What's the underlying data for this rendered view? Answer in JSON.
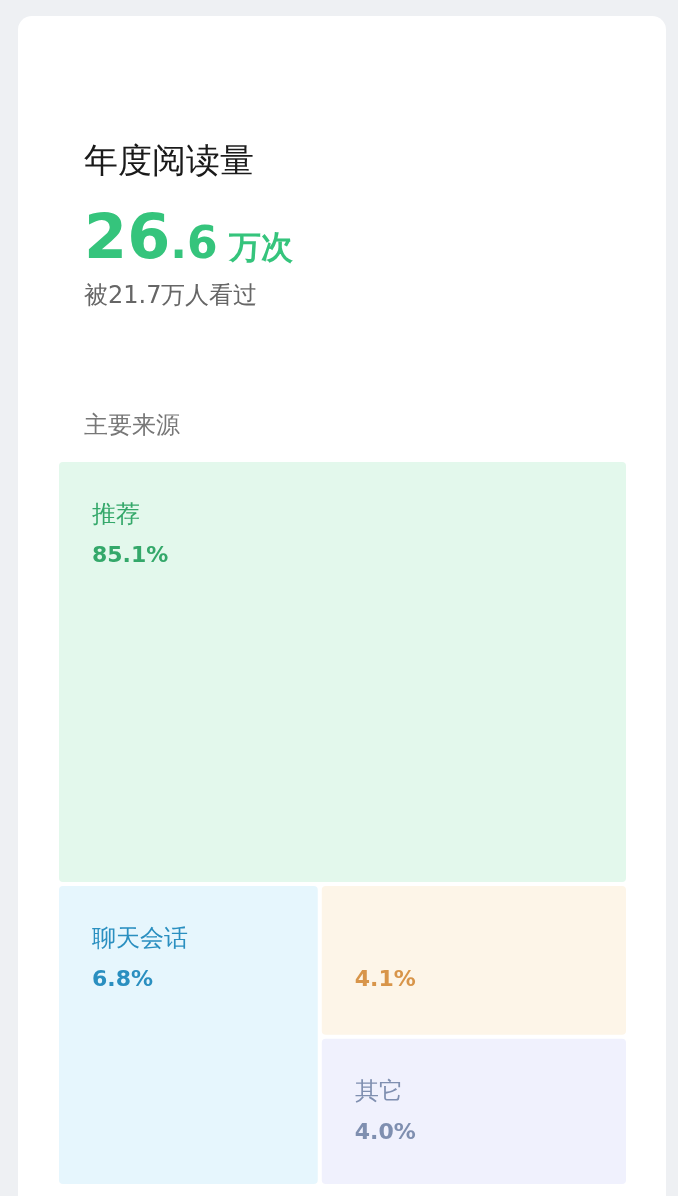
{
  "chart_data": {
    "type": "other",
    "title": "年度阅读量",
    "subtitle": "被21.7万人看过",
    "annotations": [
      "26.6 万次",
      "主要来源"
    ],
    "categories": [
      "推荐",
      "聊天会话",
      null,
      "其它"
    ],
    "values": [
      85.1,
      6.8,
      4.1,
      4.0
    ],
    "value_labels": [
      "85.1%",
      "6.8%",
      "4.1%",
      "4.0%"
    ],
    "colors": [
      "#e3f8ec",
      "#e6f6fd",
      "#fdf5e8",
      "#f0f1fd"
    ]
  }
}
